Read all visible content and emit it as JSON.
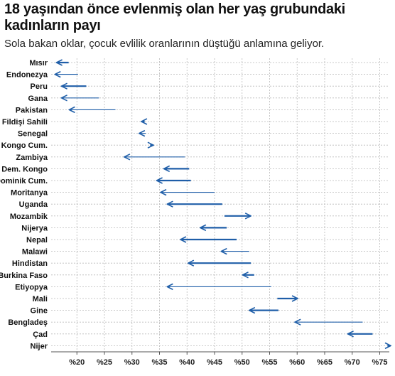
{
  "header": {
    "title": "18 yaşından önce evlenmiş olan her yaş grubundaki kadınların payı",
    "subtitle": "Sola bakan oklar, çocuk evlilik oranlarının düştüğü anlamına geliyor."
  },
  "chart_data": {
    "type": "arrow",
    "title": "18 yaşından önce evlenmiş olan her yaş grubundaki kadınların payı",
    "subtitle": "Sola bakan oklar, çocuk evlilik oranlarının düştüğü anlamına geliyor.",
    "x_unit": "%",
    "xlim": [
      15,
      77
    ],
    "x_ticks": [
      20,
      25,
      30,
      35,
      40,
      45,
      50,
      55,
      60,
      65,
      70,
      75
    ],
    "x_tick_labels": [
      "%20",
      "%25",
      "%30",
      "%35",
      "%40",
      "%45",
      "%50",
      "%55",
      "%60",
      "%65",
      "%70",
      "%75"
    ],
    "grid": true,
    "arrow_color": "#1f5ea8",
    "series": [
      {
        "country": "Mısır",
        "from": 18.5,
        "to": 16.3,
        "bold": true
      },
      {
        "country": "Endonezya",
        "from": 20.2,
        "to": 16.0,
        "bold": false
      },
      {
        "country": "Peru",
        "from": 21.7,
        "to": 17.2,
        "bold": true
      },
      {
        "country": "Gana",
        "from": 24.0,
        "to": 17.2,
        "bold": false
      },
      {
        "country": "Pakistan",
        "from": 27.0,
        "to": 18.6,
        "bold": false
      },
      {
        "country": "Fildişi Sahili",
        "from": 32.3,
        "to": 31.7,
        "bold": true
      },
      {
        "country": "Senegal",
        "from": 32.5,
        "to": 31.3,
        "bold": false
      },
      {
        "country": "Kongo Cum.",
        "from": 33.3,
        "to": 33.9,
        "bold": true
      },
      {
        "country": "Zambiya",
        "from": 39.6,
        "to": 28.6,
        "bold": false
      },
      {
        "country": "Dem. Kongo",
        "from": 40.4,
        "to": 35.8,
        "bold": true
      },
      {
        "country": "Dominik Cum.",
        "from": 40.7,
        "to": 34.5,
        "bold": true
      },
      {
        "country": "Moritanya",
        "from": 45.0,
        "to": 35.2,
        "bold": false
      },
      {
        "country": "Uganda",
        "from": 46.4,
        "to": 36.4,
        "bold": true
      },
      {
        "country": "Mozambik",
        "from": 46.8,
        "to": 51.6,
        "bold": true
      },
      {
        "country": "Nijerya",
        "from": 47.2,
        "to": 42.4,
        "bold": true
      },
      {
        "country": "Nepal",
        "from": 49.0,
        "to": 38.8,
        "bold": true
      },
      {
        "country": "Malawi",
        "from": 51.3,
        "to": 46.2,
        "bold": false
      },
      {
        "country": "Hindistan",
        "from": 51.6,
        "to": 40.2,
        "bold": true
      },
      {
        "country": "Burkina Faso",
        "from": 52.2,
        "to": 50.1,
        "bold": true
      },
      {
        "country": "Etiyopya",
        "from": 55.3,
        "to": 36.4,
        "bold": false
      },
      {
        "country": "Mali",
        "from": 56.4,
        "to": 60.1,
        "bold": true
      },
      {
        "country": "Gine",
        "from": 56.6,
        "to": 51.3,
        "bold": true
      },
      {
        "country": "Bengladeş",
        "from": 71.9,
        "to": 59.6,
        "bold": false
      },
      {
        "country": "Çad",
        "from": 73.7,
        "to": 69.2,
        "bold": true
      },
      {
        "country": "Nijer",
        "from": 76.4,
        "to": 77.0,
        "bold": true
      }
    ]
  }
}
